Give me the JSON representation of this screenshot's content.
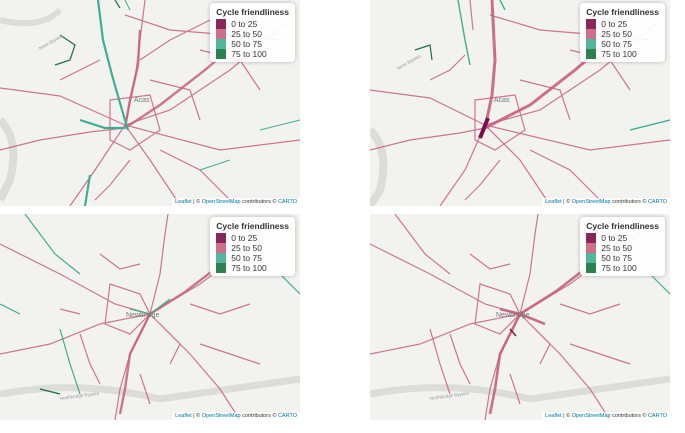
{
  "legend": {
    "title": "Cycle friendliness",
    "items": [
      {
        "label": "0 to 25",
        "color": "#7a0f4a"
      },
      {
        "label": "25 to 50",
        "color": "#c8607d"
      },
      {
        "label": "50 to 75",
        "color": "#3fae94"
      },
      {
        "label": "75 to 100",
        "color": "#17733c"
      }
    ]
  },
  "attribution": {
    "leaflet": "Leaflet",
    "sep1": " | © ",
    "osm": "OpenStreetMap",
    "middle": " contributors © ",
    "carto": "CARTO"
  },
  "panels": [
    {
      "place_label": "Acas",
      "road_label": "Nene Bypass"
    },
    {
      "place_label": "Acas",
      "road_label": "Nene Bypass"
    },
    {
      "place_label": "Newbridge",
      "road_label": "Northbridge Bypass"
    },
    {
      "place_label": "Newbridge",
      "road_label": "Northbridge Bypass"
    }
  ]
}
